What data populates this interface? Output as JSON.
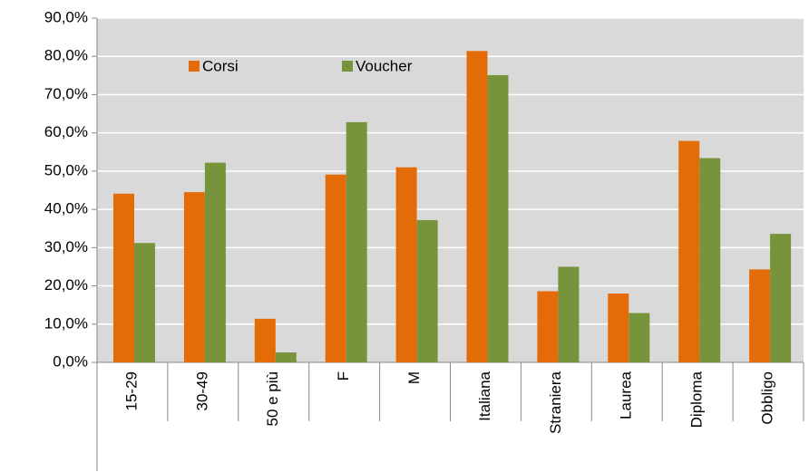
{
  "chart_data": {
    "type": "bar",
    "categories": [
      "15-29",
      "30-49",
      "50 e più",
      "F",
      "M",
      "Italiana",
      "Straniera",
      "Laurea",
      "Diploma",
      "Obbligo"
    ],
    "series": [
      {
        "name": "Corsi",
        "color": "#e36c09",
        "values": [
          44.1,
          44.5,
          11.4,
          49.1,
          51.0,
          81.4,
          18.6,
          18.0,
          57.9,
          24.3
        ]
      },
      {
        "name": "Voucher",
        "color": "#77933c",
        "values": [
          31.2,
          52.2,
          2.6,
          62.8,
          37.2,
          75.1,
          25.0,
          12.9,
          53.4,
          33.6
        ]
      }
    ],
    "ylim": [
      0,
      90
    ],
    "yticks": [
      {
        "value": 0,
        "label": "0,0%"
      },
      {
        "value": 10,
        "label": "10,0%"
      },
      {
        "value": 20,
        "label": "20,0%"
      },
      {
        "value": 30,
        "label": "30,0%"
      },
      {
        "value": 40,
        "label": "40,0%"
      },
      {
        "value": 50,
        "label": "50,0%"
      },
      {
        "value": 60,
        "label": "60,0%"
      },
      {
        "value": 70,
        "label": "70,0%"
      },
      {
        "value": 80,
        "label": "80,0%"
      },
      {
        "value": 90,
        "label": "90,0%"
      }
    ],
    "grid": true
  }
}
